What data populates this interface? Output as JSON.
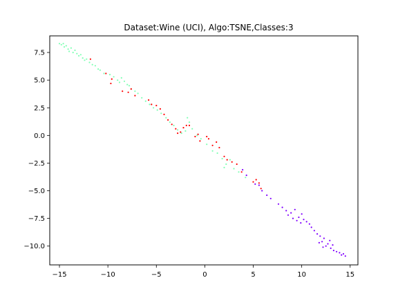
{
  "chart_data": {
    "type": "scatter",
    "title": "Dataset:Wine (UCI), Algo:TSNE,Classes:3",
    "xlabel": "",
    "ylabel": "",
    "xlim": [
      -16.0,
      15.8
    ],
    "ylim": [
      -11.7,
      9.0
    ],
    "xticks": [
      -15,
      -10,
      -5,
      0,
      5,
      10,
      15
    ],
    "yticks": [
      7.5,
      5.0,
      2.5,
      0.0,
      -2.5,
      -5.0,
      -7.5,
      -10.0
    ],
    "xtick_labels": [
      "−15",
      "−10",
      "−5",
      "0",
      "5",
      "10",
      "15"
    ],
    "ytick_labels": [
      "7.5",
      "5.0",
      "2.5",
      "0.0",
      "−2.5",
      "−5.0",
      "−7.5",
      "−10.0"
    ],
    "grid": false,
    "legend": "none",
    "series": [
      {
        "color": "#80ffb4",
        "points": [
          [
            -15.0,
            8.3
          ],
          [
            -14.8,
            8.2
          ],
          [
            -14.6,
            8.3
          ],
          [
            -14.5,
            8.0
          ],
          [
            -14.3,
            8.1
          ],
          [
            -14.1,
            7.8
          ],
          [
            -14.0,
            7.6
          ],
          [
            -13.8,
            7.9
          ],
          [
            -13.6,
            7.5
          ],
          [
            -13.4,
            7.7
          ],
          [
            -13.2,
            7.4
          ],
          [
            -13.0,
            7.2
          ],
          [
            -12.8,
            7.3
          ],
          [
            -12.6,
            7.0
          ],
          [
            -12.4,
            6.8
          ],
          [
            -12.2,
            6.9
          ],
          [
            -11.9,
            6.6
          ],
          [
            -11.6,
            6.4
          ],
          [
            -11.3,
            6.3
          ],
          [
            -11.0,
            6.0
          ],
          [
            -10.8,
            5.9
          ],
          [
            -10.4,
            5.6
          ],
          [
            -9.8,
            5.5
          ],
          [
            -9.4,
            5.3
          ],
          [
            -9.0,
            5.0
          ],
          [
            -8.8,
            4.8
          ],
          [
            -8.6,
            5.2
          ],
          [
            -8.3,
            4.9
          ],
          [
            -8.0,
            4.6
          ],
          [
            -7.8,
            4.5
          ],
          [
            -7.6,
            4.2
          ],
          [
            -7.2,
            4.0
          ],
          [
            -6.9,
            3.8
          ],
          [
            -6.5,
            3.4
          ],
          [
            -6.1,
            3.1
          ],
          [
            -5.7,
            2.8
          ],
          [
            -5.3,
            2.5
          ],
          [
            -4.9,
            2.3
          ],
          [
            -4.5,
            2.0
          ],
          [
            -4.0,
            1.6
          ],
          [
            -3.6,
            1.2
          ],
          [
            -3.2,
            0.9
          ],
          [
            -2.8,
            0.5
          ],
          [
            -2.4,
            0.2
          ],
          [
            -2.0,
            0.4
          ],
          [
            -1.8,
            1.6
          ],
          [
            -1.6,
            1.2
          ],
          [
            -1.3,
            0.6
          ],
          [
            -0.8,
            0.0
          ],
          [
            -0.4,
            -0.3
          ],
          [
            0.2,
            -0.8
          ],
          [
            0.8,
            -1.4
          ],
          [
            1.3,
            -1.6
          ],
          [
            1.8,
            -2.1
          ],
          [
            2.2,
            -2.6
          ],
          [
            2.6,
            -2.2
          ],
          [
            2.0,
            -2.9
          ],
          [
            3.0,
            -3.0
          ],
          [
            3.5,
            -3.3
          ],
          [
            4.2,
            -3.8
          ]
        ]
      },
      {
        "color": "#ff0000",
        "points": [
          [
            -11.8,
            6.9
          ],
          [
            -10.2,
            5.6
          ],
          [
            -9.6,
            5.1
          ],
          [
            -9.7,
            4.7
          ],
          [
            -8.5,
            4.0
          ],
          [
            -7.9,
            3.9
          ],
          [
            -7.6,
            4.2
          ],
          [
            -7.2,
            3.6
          ],
          [
            -5.8,
            3.2
          ],
          [
            -5.5,
            2.8
          ],
          [
            -5.0,
            2.7
          ],
          [
            -4.6,
            2.4
          ],
          [
            -4.2,
            1.9
          ],
          [
            -3.8,
            1.4
          ],
          [
            -3.4,
            1.0
          ],
          [
            -3.0,
            0.6
          ],
          [
            -2.8,
            0.2
          ],
          [
            -2.5,
            0.3
          ],
          [
            -2.2,
            0.7
          ],
          [
            -1.9,
            0.9
          ],
          [
            -1.6,
            0.9
          ],
          [
            -1.0,
            -0.1
          ],
          [
            -0.7,
            0.1
          ],
          [
            -0.5,
            -0.5
          ],
          [
            0.2,
            -0.1
          ],
          [
            0.4,
            -0.3
          ],
          [
            0.8,
            -0.9
          ],
          [
            1.2,
            -0.6
          ],
          [
            1.5,
            -1.1
          ],
          [
            2.0,
            -1.9
          ],
          [
            2.3,
            -2.2
          ],
          [
            2.8,
            -2.4
          ],
          [
            3.3,
            -2.6
          ],
          [
            3.8,
            -3.3
          ],
          [
            5.0,
            -4.2
          ],
          [
            5.3,
            -4.0
          ],
          [
            5.6,
            -4.3
          ],
          [
            5.8,
            -4.8
          ]
        ]
      },
      {
        "color": "#8000ff",
        "points": [
          [
            3.9,
            -3.1
          ],
          [
            4.3,
            -3.6
          ],
          [
            5.2,
            -4.4
          ],
          [
            5.6,
            -4.5
          ],
          [
            5.9,
            -5.0
          ],
          [
            6.4,
            -5.4
          ],
          [
            6.8,
            -5.7
          ],
          [
            7.6,
            -6.2
          ],
          [
            8.0,
            -6.5
          ],
          [
            8.4,
            -6.8
          ],
          [
            8.6,
            -7.2
          ],
          [
            8.9,
            -7.0
          ],
          [
            9.1,
            -7.5
          ],
          [
            9.3,
            -6.7
          ],
          [
            9.5,
            -7.7
          ],
          [
            9.7,
            -7.4
          ],
          [
            9.9,
            -7.9
          ],
          [
            10.0,
            -7.1
          ],
          [
            10.2,
            -7.6
          ],
          [
            10.5,
            -7.8
          ],
          [
            10.8,
            -8.0
          ],
          [
            11.0,
            -8.3
          ],
          [
            11.3,
            -8.6
          ],
          [
            11.6,
            -8.9
          ],
          [
            11.9,
            -9.1
          ],
          [
            12.1,
            -9.6
          ],
          [
            12.3,
            -9.3
          ],
          [
            12.5,
            -10.0
          ],
          [
            12.7,
            -9.8
          ],
          [
            12.9,
            -9.5
          ],
          [
            13.0,
            -10.2
          ],
          [
            13.3,
            -10.4
          ],
          [
            13.6,
            -10.5
          ],
          [
            13.9,
            -10.6
          ],
          [
            14.1,
            -10.8
          ],
          [
            14.3,
            -10.7
          ],
          [
            14.5,
            -10.9
          ],
          [
            12.2,
            -10.1
          ],
          [
            11.8,
            -9.7
          ],
          [
            13.2,
            -9.9
          ]
        ]
      }
    ]
  }
}
